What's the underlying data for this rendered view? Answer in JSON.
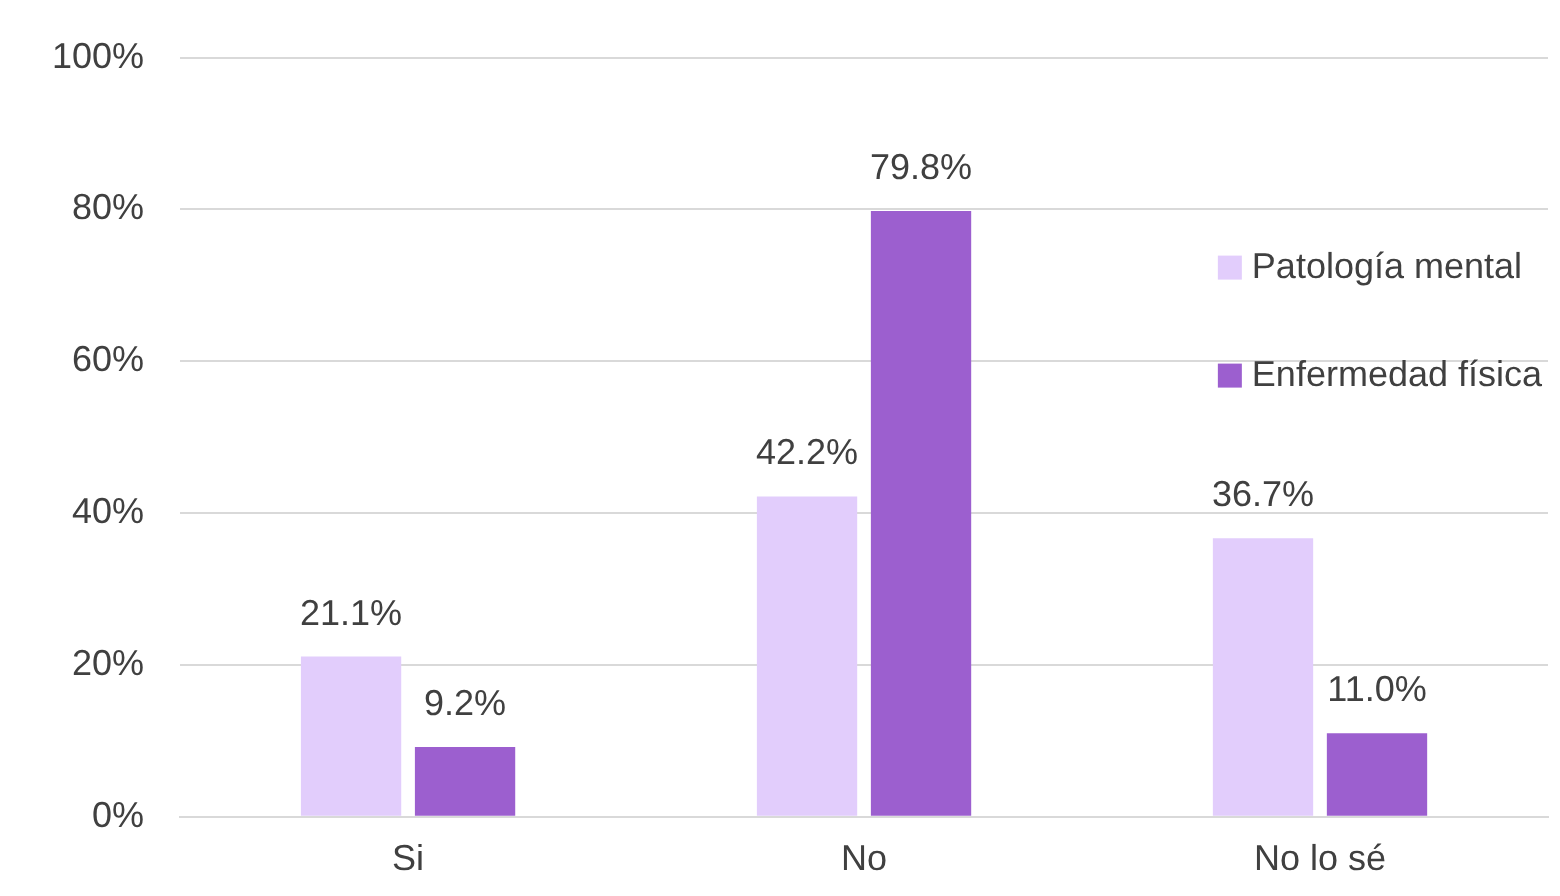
{
  "chart_data": {
    "type": "bar",
    "categories": [
      "Si",
      "No",
      "No lo sé"
    ],
    "series": [
      {
        "name": "Patología mental",
        "color": "#e2cdfc",
        "values": [
          21.1,
          42.2,
          36.7
        ],
        "value_labels": [
          "21.1%",
          "42.2%",
          "36.7%"
        ]
      },
      {
        "name": "Enfermedad física",
        "color": "#9c5fcf",
        "values": [
          9.2,
          79.8,
          11.0
        ],
        "value_labels": [
          "9.2%",
          "79.8%",
          "11.0%"
        ]
      }
    ],
    "ylim": [
      0,
      100
    ],
    "yticks": [
      {
        "value": 0,
        "label": "0%"
      },
      {
        "value": 20,
        "label": "20%"
      },
      {
        "value": 40,
        "label": "40%"
      },
      {
        "value": 60,
        "label": "60%"
      },
      {
        "value": 80,
        "label": "80%"
      },
      {
        "value": 100,
        "label": "100%"
      }
    ],
    "grid": "y",
    "legend": "right"
  }
}
